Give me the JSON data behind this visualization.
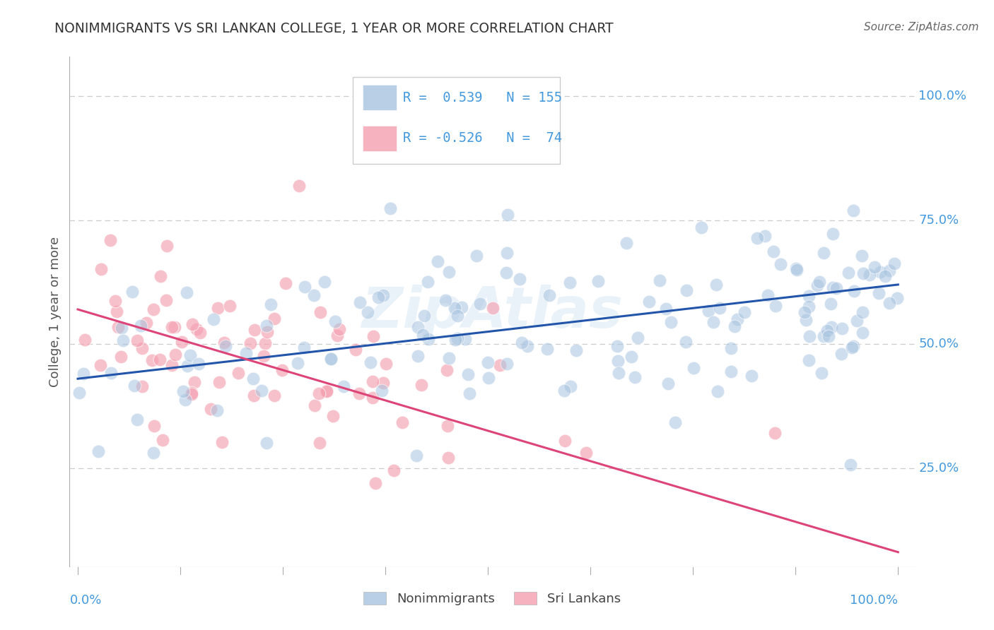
{
  "title": "NONIMMIGRANTS VS SRI LANKAN COLLEGE, 1 YEAR OR MORE CORRELATION CHART",
  "source": "Source: ZipAtlas.com",
  "ylabel": "College, 1 year or more",
  "watermark": "ZipAtlas",
  "legend1_r": "0.539",
  "legend1_n": "155",
  "legend2_r": "-0.526",
  "legend2_n": "74",
  "blue_color": "#a8c4e0",
  "pink_color": "#f4a0b0",
  "blue_line_color": "#2255aa",
  "pink_line_color": "#dd4477",
  "axis_label_color": "#4499dd",
  "title_color": "#333333",
  "grid_color": "#cccccc",
  "background_color": "#ffffff",
  "ytick_values": [
    0.0,
    0.25,
    0.5,
    0.75,
    1.0
  ],
  "blue_line_x": [
    0.0,
    1.0
  ],
  "blue_line_y": [
    0.43,
    0.62
  ],
  "pink_line_x": [
    0.0,
    1.0
  ],
  "pink_line_y": [
    0.57,
    0.08
  ],
  "xlim": [
    -0.01,
    1.02
  ],
  "ylim": [
    0.05,
    1.08
  ]
}
